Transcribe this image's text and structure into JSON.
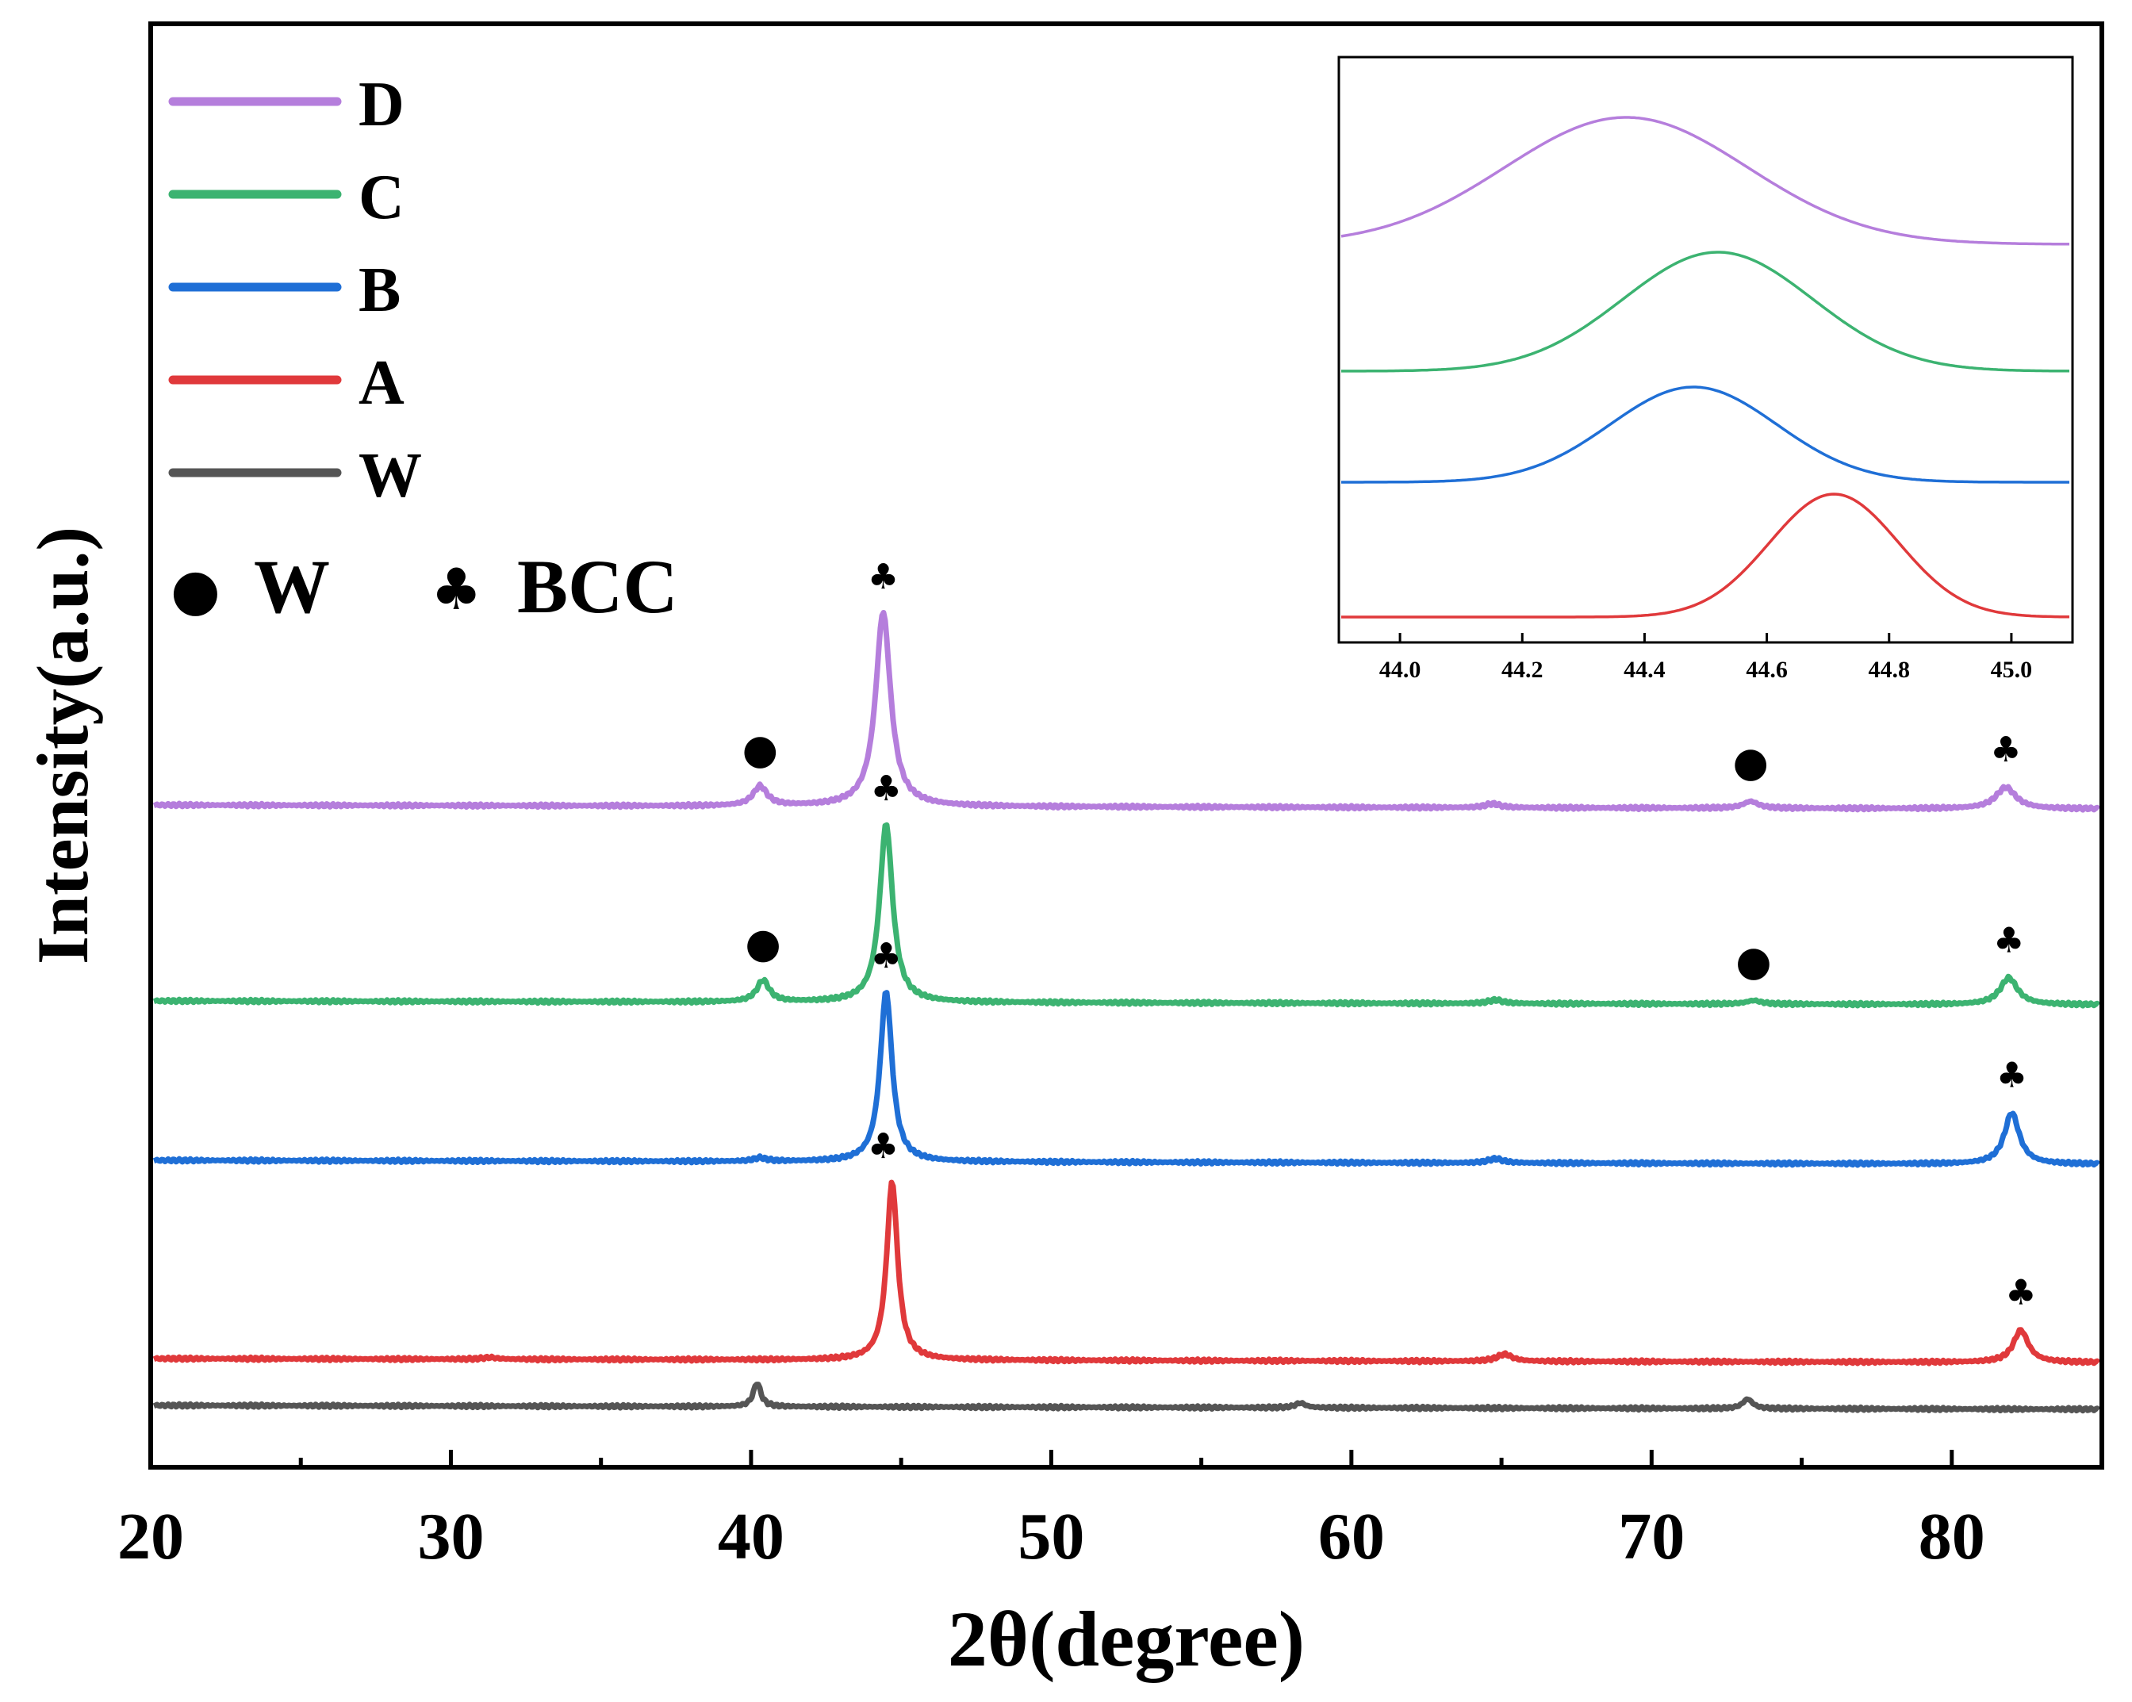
{
  "chart_data": {
    "type": "line",
    "title": "",
    "xlabel": "2θ(degree)",
    "ylabel": "Intensity(a.u.)",
    "xlim": [
      20,
      85
    ],
    "xticks": [
      "20",
      "30",
      "40",
      "50",
      "60",
      "70",
      "80"
    ],
    "y_ticks_shown": false,
    "series": [
      {
        "name": "D",
        "color": "#B57EDC",
        "peaks": [
          {
            "x": 40.3,
            "h": 0.1,
            "w": 0.28
          },
          {
            "x": 44.4,
            "h": 1.0,
            "w": 0.3
          },
          {
            "x": 64.7,
            "h": 0.02,
            "w": 0.3
          },
          {
            "x": 73.3,
            "h": 0.035,
            "w": 0.3
          },
          {
            "x": 81.8,
            "h": 0.11,
            "w": 0.4
          }
        ]
      },
      {
        "name": "C",
        "color": "#3CB371",
        "peaks": [
          {
            "x": 40.4,
            "h": 0.12,
            "w": 0.25
          },
          {
            "x": 44.5,
            "h": 1.0,
            "w": 0.26
          },
          {
            "x": 64.8,
            "h": 0.02,
            "w": 0.3
          },
          {
            "x": 73.4,
            "h": 0.02,
            "w": 0.3
          },
          {
            "x": 81.9,
            "h": 0.15,
            "w": 0.35
          }
        ]
      },
      {
        "name": "B",
        "color": "#1F6FD6",
        "peaks": [
          {
            "x": 40.3,
            "h": 0.02,
            "w": 0.25
          },
          {
            "x": 44.5,
            "h": 1.0,
            "w": 0.24
          },
          {
            "x": 64.8,
            "h": 0.025,
            "w": 0.3
          },
          {
            "x": 82.0,
            "h": 0.3,
            "w": 0.3
          }
        ]
      },
      {
        "name": "A",
        "color": "#E0393B",
        "peaks": [
          {
            "x": 31.3,
            "h": 0.01,
            "w": 0.3
          },
          {
            "x": 44.7,
            "h": 1.0,
            "w": 0.22
          },
          {
            "x": 65.1,
            "h": 0.04,
            "w": 0.3
          },
          {
            "x": 82.3,
            "h": 0.18,
            "w": 0.3
          }
        ]
      },
      {
        "name": "W",
        "color": "#555555",
        "peaks": [
          {
            "x": 40.2,
            "h": 1.0,
            "w": 0.15
          },
          {
            "x": 58.3,
            "h": 0.2,
            "w": 0.2
          },
          {
            "x": 73.2,
            "h": 0.4,
            "w": 0.2
          }
        ]
      }
    ],
    "legend": {
      "position": "top-left",
      "entries": [
        "D",
        "C",
        "B",
        "A",
        "W"
      ]
    },
    "phase_legend": [
      {
        "symbol": "●",
        "label": "W"
      },
      {
        "symbol": "♣",
        "label": "BCC"
      }
    ],
    "annotations": [
      {
        "series": "D",
        "x": 40.3,
        "symbol": "●"
      },
      {
        "series": "D",
        "x": 44.4,
        "symbol": "♣"
      },
      {
        "series": "D",
        "x": 73.3,
        "symbol": "●"
      },
      {
        "series": "D",
        "x": 81.8,
        "symbol": "♣"
      },
      {
        "series": "C",
        "x": 40.4,
        "symbol": "●"
      },
      {
        "series": "C",
        "x": 44.5,
        "symbol": "♣"
      },
      {
        "series": "C",
        "x": 73.4,
        "symbol": "●"
      },
      {
        "series": "C",
        "x": 81.9,
        "symbol": "♣"
      },
      {
        "series": "B",
        "x": 44.5,
        "symbol": "♣"
      },
      {
        "series": "B",
        "x": 82.0,
        "symbol": "♣"
      },
      {
        "series": "A",
        "x": 44.4,
        "symbol": "♣"
      },
      {
        "series": "A",
        "x": 82.3,
        "symbol": "♣"
      }
    ],
    "inset": {
      "type": "line",
      "xlim": [
        43.9,
        45.1
      ],
      "xticks": [
        "44.0",
        "44.2",
        "44.4",
        "44.6",
        "44.8",
        "45.0"
      ],
      "series": [
        {
          "name": "D",
          "color": "#B57EDC",
          "peak_x": 44.37,
          "width": 0.32
        },
        {
          "name": "C",
          "color": "#3CB371",
          "peak_x": 44.52,
          "width": 0.25
        },
        {
          "name": "B",
          "color": "#1F6FD6",
          "peak_x": 44.48,
          "width": 0.22
        },
        {
          "name": "A",
          "color": "#E0393B",
          "peak_x": 44.71,
          "width": 0.17
        }
      ]
    }
  }
}
